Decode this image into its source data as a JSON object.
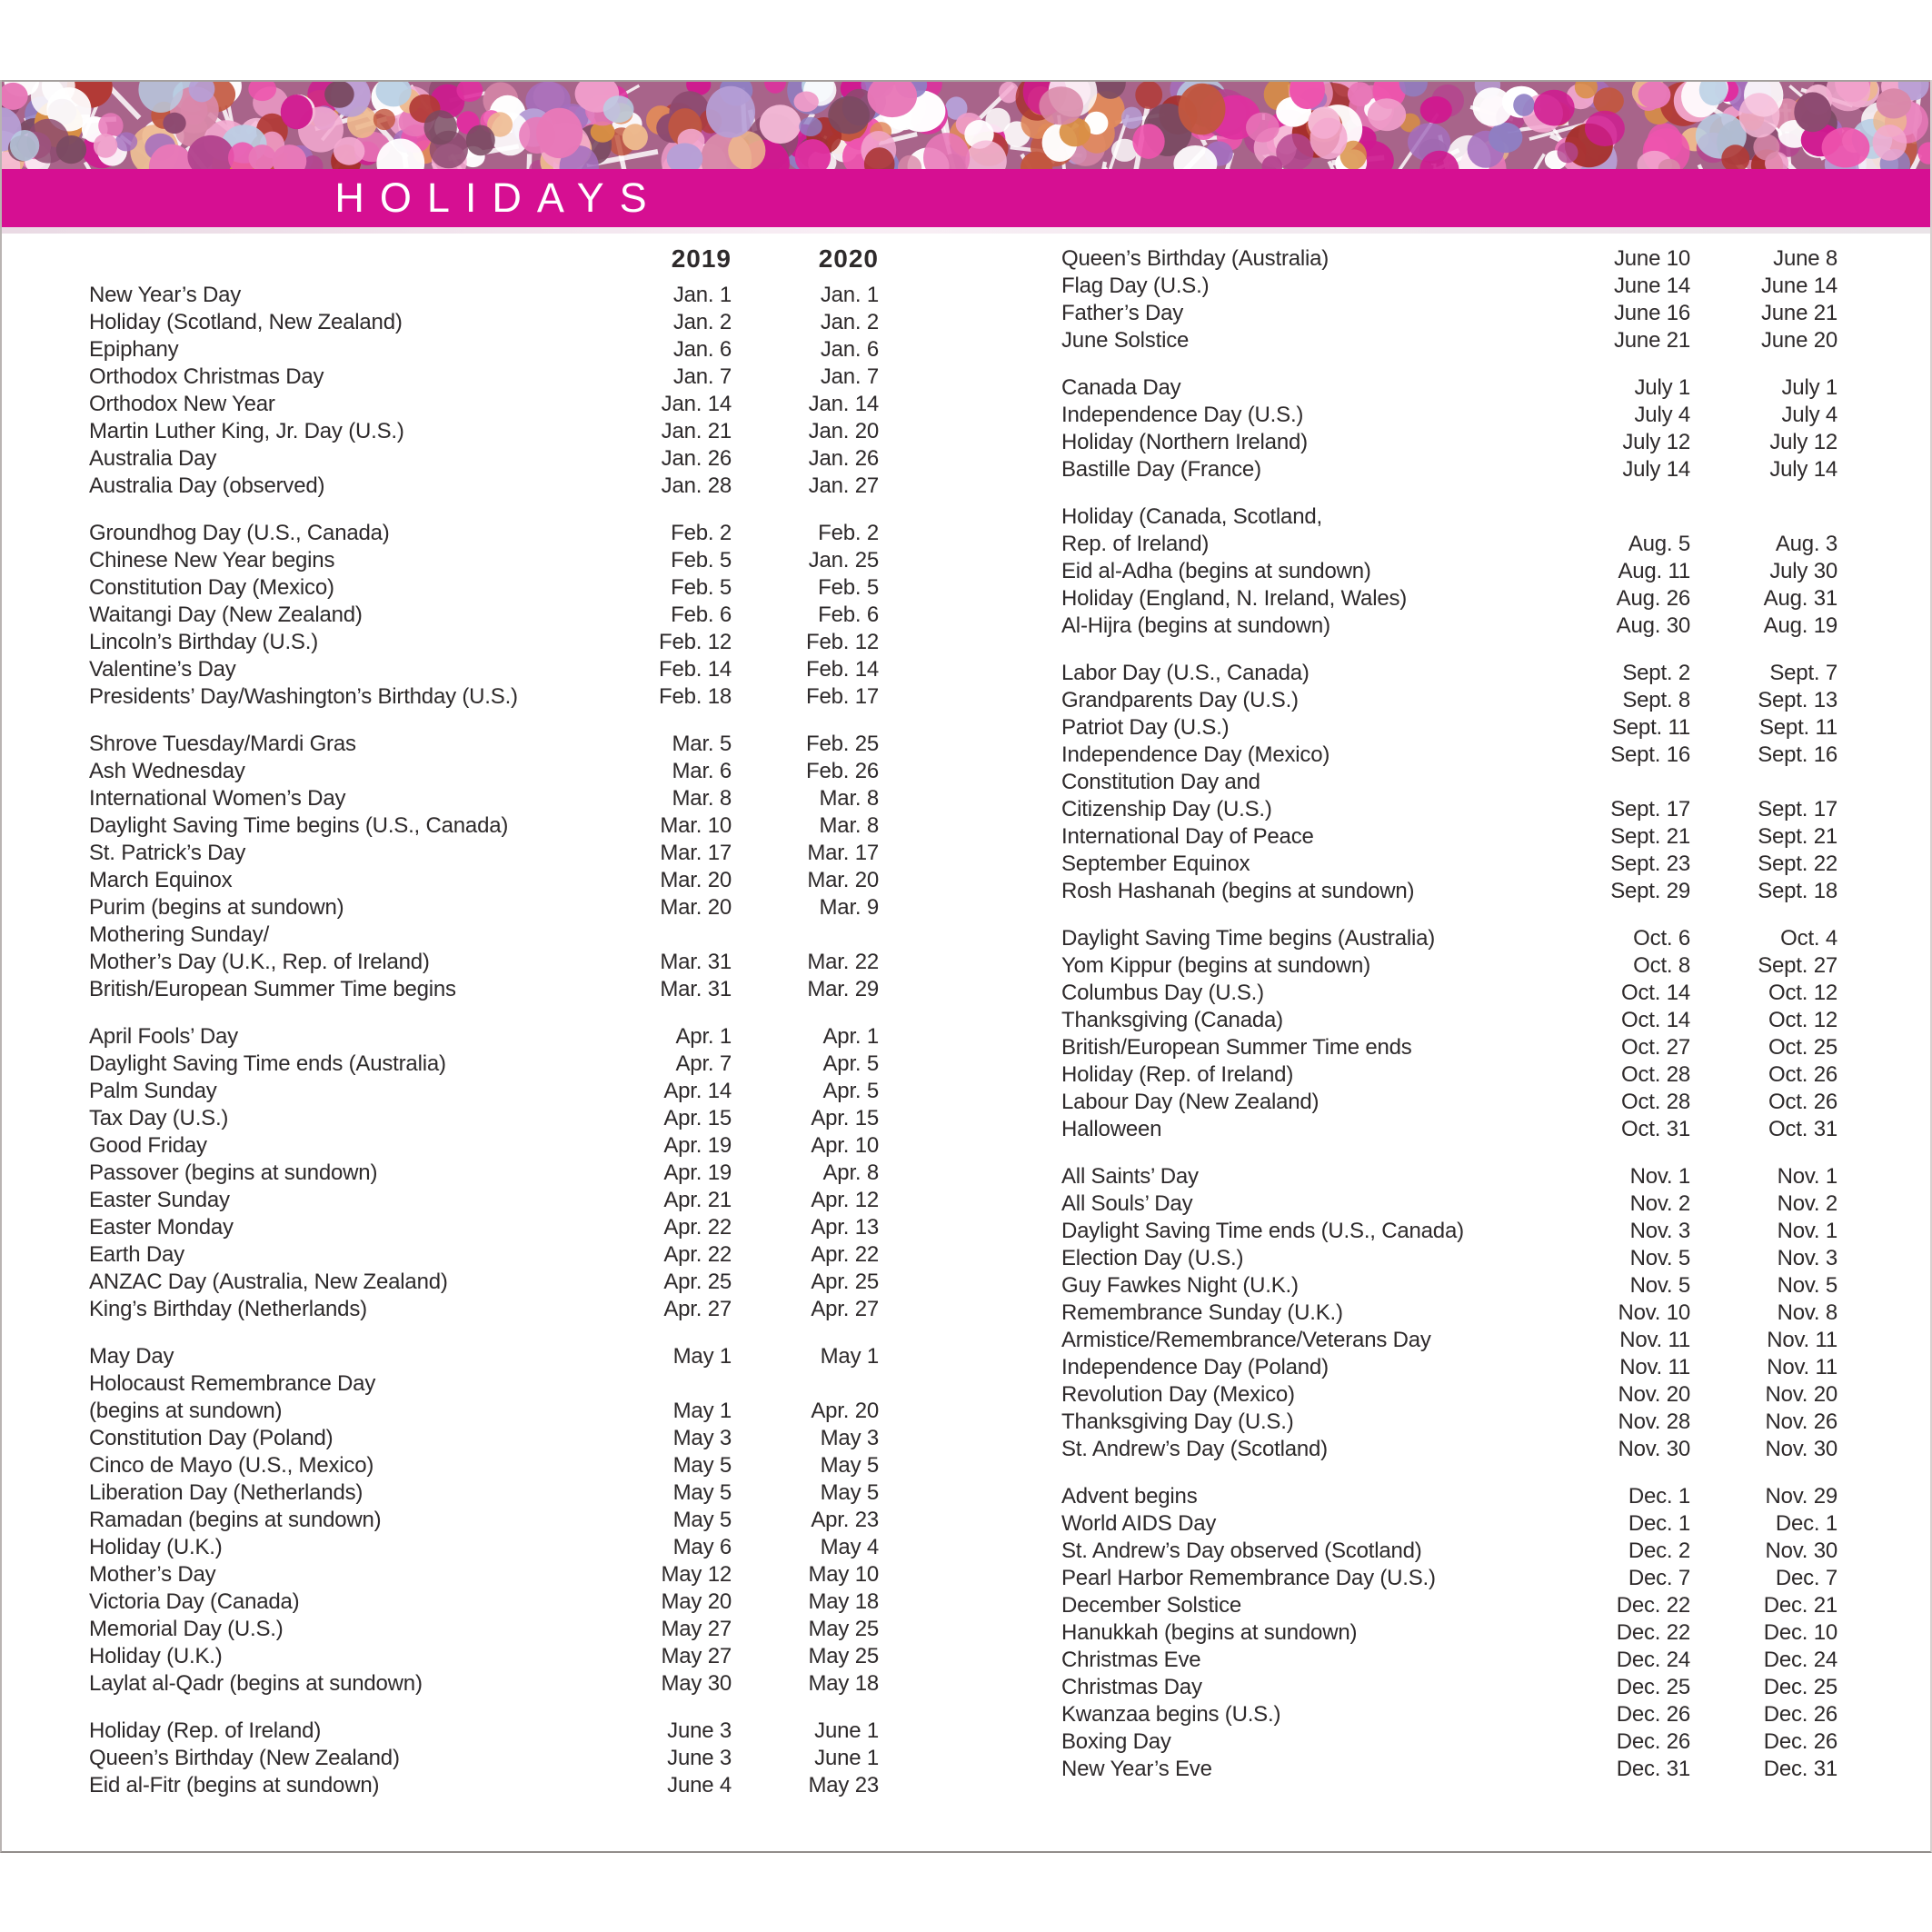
{
  "page": {
    "title": "HOLIDAYS"
  },
  "colors": {
    "banner": "#d60f92",
    "text": "#2e2a2b",
    "confetti_base": "#a8648a",
    "confetti_palette": [
      "#ffffff",
      "#f6bcd9",
      "#ef9cc9",
      "#e878b8",
      "#ee54ae",
      "#df2f9f",
      "#cf1a90",
      "#b4458f",
      "#a56fbe",
      "#8f7fc4",
      "#b79fd6",
      "#8d4a70",
      "#b23a36",
      "#a62f2b",
      "#c2573f",
      "#e0895c",
      "#d98f43",
      "#edb88d",
      "#d989a9",
      "#b9cfe4",
      "#7a4a62",
      "#ffffff",
      "#ffffff",
      "#f3a9d0"
    ]
  },
  "year_headers": [
    "2019",
    "2020"
  ],
  "columns": [
    {
      "id": "left",
      "show_year_headers": true,
      "groups": [
        [
          [
            "New Year’s Day",
            "Jan. 1",
            "Jan. 1"
          ],
          [
            "Holiday (Scotland, New Zealand)",
            "Jan. 2",
            "Jan. 2"
          ],
          [
            "Epiphany",
            "Jan. 6",
            "Jan. 6"
          ],
          [
            "Orthodox Christmas Day",
            "Jan. 7",
            "Jan. 7"
          ],
          [
            "Orthodox New Year",
            "Jan. 14",
            "Jan. 14"
          ],
          [
            "Martin Luther King, Jr. Day (U.S.)",
            "Jan. 21",
            "Jan. 20"
          ],
          [
            "Australia Day",
            "Jan. 26",
            "Jan. 26"
          ],
          [
            "Australia Day (observed)",
            "Jan. 28",
            "Jan. 27"
          ]
        ],
        [
          [
            "Groundhog Day (U.S., Canada)",
            "Feb. 2",
            "Feb. 2"
          ],
          [
            "Chinese New Year begins",
            "Feb. 5",
            "Jan. 25"
          ],
          [
            "Constitution Day (Mexico)",
            "Feb. 5",
            "Feb. 5"
          ],
          [
            "Waitangi Day (New Zealand)",
            "Feb. 6",
            "Feb. 6"
          ],
          [
            "Lincoln’s Birthday (U.S.)",
            "Feb. 12",
            "Feb. 12"
          ],
          [
            "Valentine’s Day",
            "Feb. 14",
            "Feb. 14"
          ],
          [
            "Presidents’ Day/Washington’s Birthday (U.S.)",
            "Feb. 18",
            "Feb. 17"
          ]
        ],
        [
          [
            "Shrove Tuesday/Mardi Gras",
            "Mar. 5",
            "Feb. 25"
          ],
          [
            "Ash Wednesday",
            "Mar. 6",
            "Feb. 26"
          ],
          [
            "International Women’s Day",
            "Mar. 8",
            "Mar. 8"
          ],
          [
            "Daylight Saving Time begins (U.S., Canada)",
            "Mar. 10",
            "Mar. 8"
          ],
          [
            "St. Patrick’s Day",
            "Mar. 17",
            "Mar. 17"
          ],
          [
            "March Equinox",
            "Mar. 20",
            "Mar. 20"
          ],
          [
            "Purim (begins at sundown)",
            "Mar. 20",
            "Mar. 9"
          ],
          [
            "Mothering Sunday/",
            "",
            ""
          ],
          [
            "Mother’s Day (U.K., Rep. of Ireland)",
            "Mar. 31",
            "Mar. 22"
          ],
          [
            "British/European Summer Time begins",
            "Mar. 31",
            "Mar. 29"
          ]
        ],
        [
          [
            "April Fools’ Day",
            "Apr. 1",
            "Apr. 1"
          ],
          [
            "Daylight Saving Time ends (Australia)",
            "Apr. 7",
            "Apr. 5"
          ],
          [
            "Palm Sunday",
            "Apr. 14",
            "Apr. 5"
          ],
          [
            "Tax Day (U.S.)",
            "Apr. 15",
            "Apr. 15"
          ],
          [
            "Good Friday",
            "Apr. 19",
            "Apr. 10"
          ],
          [
            "Passover (begins at sundown)",
            "Apr. 19",
            "Apr. 8"
          ],
          [
            "Easter Sunday",
            "Apr. 21",
            "Apr. 12"
          ],
          [
            "Easter Monday",
            "Apr. 22",
            "Apr. 13"
          ],
          [
            "Earth Day",
            "Apr. 22",
            "Apr. 22"
          ],
          [
            "ANZAC Day (Australia, New Zealand)",
            "Apr. 25",
            "Apr. 25"
          ],
          [
            "King’s Birthday (Netherlands)",
            "Apr. 27",
            "Apr. 27"
          ]
        ],
        [
          [
            "May Day",
            "May 1",
            "May 1"
          ],
          [
            "Holocaust Remembrance Day",
            "",
            ""
          ],
          [
            "(begins at sundown)",
            "May 1",
            "Apr. 20"
          ],
          [
            "Constitution Day (Poland)",
            "May 3",
            "May 3"
          ],
          [
            "Cinco de Mayo (U.S., Mexico)",
            "May 5",
            "May 5"
          ],
          [
            "Liberation Day (Netherlands)",
            "May 5",
            "May 5"
          ],
          [
            "Ramadan (begins at sundown)",
            "May 5",
            "Apr. 23"
          ],
          [
            "Holiday (U.K.)",
            "May 6",
            "May 4"
          ],
          [
            "Mother’s Day",
            "May 12",
            "May 10"
          ],
          [
            "Victoria Day (Canada)",
            "May 20",
            "May 18"
          ],
          [
            "Memorial Day (U.S.)",
            "May 27",
            "May 25"
          ],
          [
            "Holiday (U.K.)",
            "May 27",
            "May 25"
          ],
          [
            "Laylat al-Qadr (begins at sundown)",
            "May 30",
            "May 18"
          ]
        ],
        [
          [
            "Holiday (Rep. of Ireland)",
            "June 3",
            "June 1"
          ],
          [
            "Queen’s Birthday (New Zealand)",
            "June 3",
            "June 1"
          ],
          [
            "Eid al-Fitr (begins at sundown)",
            "June 4",
            "May 23"
          ]
        ]
      ]
    },
    {
      "id": "right",
      "show_year_headers": false,
      "groups": [
        [
          [
            "Queen’s Birthday (Australia)",
            "June 10",
            "June 8"
          ],
          [
            "Flag Day (U.S.)",
            "June 14",
            "June 14"
          ],
          [
            "Father’s Day",
            "June 16",
            "June 21"
          ],
          [
            "June Solstice",
            "June 21",
            "June 20"
          ]
        ],
        [
          [
            "Canada Day",
            "July 1",
            "July 1"
          ],
          [
            "Independence Day (U.S.)",
            "July 4",
            "July 4"
          ],
          [
            "Holiday (Northern Ireland)",
            "July 12",
            "July 12"
          ],
          [
            "Bastille Day (France)",
            "July 14",
            "July 14"
          ]
        ],
        [
          [
            "Holiday (Canada, Scotland,",
            "",
            ""
          ],
          [
            "Rep. of Ireland)",
            "Aug. 5",
            "Aug. 3"
          ],
          [
            "Eid al-Adha (begins at sundown)",
            "Aug. 11",
            "July 30"
          ],
          [
            "Holiday (England, N. Ireland, Wales)",
            "Aug. 26",
            "Aug. 31"
          ],
          [
            "Al-Hijra (begins at sundown)",
            "Aug. 30",
            "Aug. 19"
          ]
        ],
        [
          [
            "Labor Day (U.S., Canada)",
            "Sept. 2",
            "Sept. 7"
          ],
          [
            "Grandparents Day (U.S.)",
            "Sept. 8",
            "Sept. 13"
          ],
          [
            "Patriot Day (U.S.)",
            "Sept. 11",
            "Sept. 11"
          ],
          [
            "Independence Day (Mexico)",
            "Sept. 16",
            "Sept. 16"
          ],
          [
            "Constitution Day and",
            "",
            ""
          ],
          [
            "Citizenship Day (U.S.)",
            "Sept. 17",
            "Sept. 17"
          ],
          [
            "International Day of Peace",
            "Sept. 21",
            "Sept. 21"
          ],
          [
            "September Equinox",
            "Sept. 23",
            "Sept. 22"
          ],
          [
            "Rosh Hashanah (begins at sundown)",
            "Sept. 29",
            "Sept. 18"
          ]
        ],
        [
          [
            "Daylight Saving Time begins (Australia)",
            "Oct. 6",
            "Oct. 4"
          ],
          [
            "Yom Kippur (begins at sundown)",
            "Oct. 8",
            "Sept. 27"
          ],
          [
            "Columbus Day (U.S.)",
            "Oct. 14",
            "Oct. 12"
          ],
          [
            "Thanksgiving (Canada)",
            "Oct. 14",
            "Oct. 12"
          ],
          [
            "British/European Summer Time ends",
            "Oct. 27",
            "Oct. 25"
          ],
          [
            "Holiday (Rep. of Ireland)",
            "Oct. 28",
            "Oct. 26"
          ],
          [
            "Labour Day (New Zealand)",
            "Oct. 28",
            "Oct. 26"
          ],
          [
            "Halloween",
            "Oct. 31",
            "Oct. 31"
          ]
        ],
        [
          [
            "All Saints’ Day",
            "Nov. 1",
            "Nov. 1"
          ],
          [
            "All Souls’ Day",
            "Nov. 2",
            "Nov. 2"
          ],
          [
            "Daylight Saving Time ends (U.S., Canada)",
            "Nov. 3",
            "Nov. 1"
          ],
          [
            "Election Day (U.S.)",
            "Nov. 5",
            "Nov. 3"
          ],
          [
            "Guy Fawkes Night (U.K.)",
            "Nov. 5",
            "Nov. 5"
          ],
          [
            "Remembrance Sunday (U.K.)",
            "Nov. 10",
            "Nov. 8"
          ],
          [
            "Armistice/Remembrance/Veterans Day",
            "Nov. 11",
            "Nov. 11"
          ],
          [
            "Independence Day (Poland)",
            "Nov. 11",
            "Nov. 11"
          ],
          [
            "Revolution Day (Mexico)",
            "Nov. 20",
            "Nov. 20"
          ],
          [
            "Thanksgiving Day (U.S.)",
            "Nov. 28",
            "Nov. 26"
          ],
          [
            "St. Andrew’s Day (Scotland)",
            "Nov. 30",
            "Nov. 30"
          ]
        ],
        [
          [
            "Advent begins",
            "Dec. 1",
            "Nov. 29"
          ],
          [
            "World AIDS Day",
            "Dec. 1",
            "Dec. 1"
          ],
          [
            "St. Andrew’s Day observed (Scotland)",
            "Dec. 2",
            "Nov. 30"
          ],
          [
            "Pearl Harbor Remembrance Day (U.S.)",
            "Dec. 7",
            "Dec. 7"
          ],
          [
            "December Solstice",
            "Dec. 22",
            "Dec. 21"
          ],
          [
            "Hanukkah (begins at sundown)",
            "Dec. 22",
            "Dec. 10"
          ],
          [
            "Christmas Eve",
            "Dec. 24",
            "Dec. 24"
          ],
          [
            "Christmas Day",
            "Dec. 25",
            "Dec. 25"
          ],
          [
            "Kwanzaa begins (U.S.)",
            "Dec. 26",
            "Dec. 26"
          ],
          [
            "Boxing Day",
            "Dec. 26",
            "Dec. 26"
          ],
          [
            "New Year’s Eve",
            "Dec. 31",
            "Dec. 31"
          ]
        ]
      ]
    }
  ]
}
